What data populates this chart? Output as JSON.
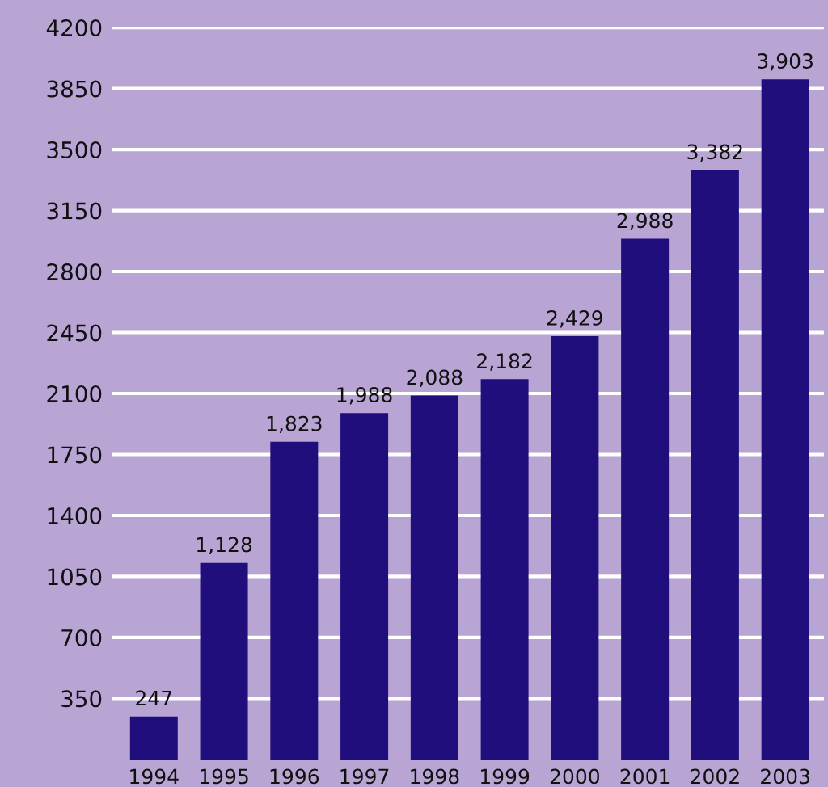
{
  "chart_data": {
    "type": "bar",
    "categories": [
      "1994",
      "1995",
      "1996",
      "1997",
      "1998",
      "1999",
      "2000",
      "2001",
      "2002",
      "2003"
    ],
    "values": [
      247,
      1128,
      1823,
      1988,
      2088,
      2182,
      2429,
      2988,
      3382,
      3903
    ],
    "value_labels": [
      "247",
      "1,128",
      "1,823",
      "1,988",
      "2,088",
      "2,182",
      "2,429",
      "2,988",
      "3,382",
      "3,903"
    ],
    "color": "#1f0e7b",
    "ylim": [
      0,
      4200
    ],
    "yticks": [
      350,
      700,
      1050,
      1400,
      1750,
      2100,
      2450,
      2800,
      3150,
      3500,
      3850,
      4200
    ],
    "grid": "y",
    "legend": false
  }
}
